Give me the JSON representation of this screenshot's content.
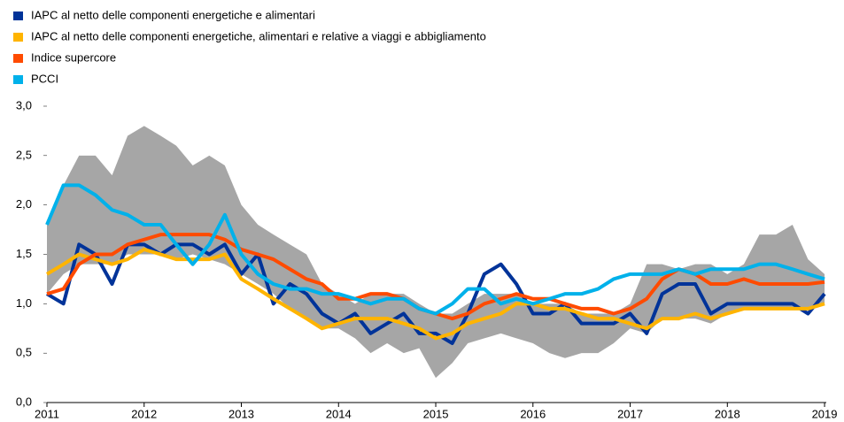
{
  "chart_data": {
    "type": "line",
    "x": [
      2011,
      2011.17,
      2011.33,
      2011.5,
      2011.67,
      2011.83,
      2012,
      2012.17,
      2012.33,
      2012.5,
      2012.67,
      2012.83,
      2013,
      2013.17,
      2013.33,
      2013.5,
      2013.67,
      2013.83,
      2014,
      2014.17,
      2014.33,
      2014.5,
      2014.67,
      2014.83,
      2015,
      2015.17,
      2015.33,
      2015.5,
      2015.67,
      2015.83,
      2016,
      2016.17,
      2016.33,
      2016.5,
      2016.67,
      2016.83,
      2017,
      2017.17,
      2017.33,
      2017.5,
      2017.67,
      2017.83,
      2018,
      2018.17,
      2018.33,
      2018.5,
      2018.67,
      2018.83,
      2019
    ],
    "band": {
      "color": "#a6a6a6",
      "upper": [
        1.8,
        2.2,
        2.5,
        2.5,
        2.3,
        2.7,
        2.8,
        2.7,
        2.6,
        2.4,
        2.5,
        2.4,
        2.0,
        1.8,
        1.7,
        1.6,
        1.5,
        1.2,
        1.1,
        1.0,
        1.1,
        1.1,
        1.1,
        1.0,
        0.9,
        0.9,
        1.0,
        1.1,
        1.1,
        1.1,
        1.0,
        1.0,
        1.0,
        0.9,
        0.9,
        0.9,
        1.0,
        1.4,
        1.4,
        1.35,
        1.4,
        1.4,
        1.3,
        1.4,
        1.7,
        1.7,
        1.8,
        1.45,
        1.3
      ],
      "lower": [
        1.1,
        1.3,
        1.4,
        1.4,
        1.4,
        1.5,
        1.5,
        1.5,
        1.45,
        1.5,
        1.45,
        1.4,
        1.3,
        1.2,
        1.1,
        0.95,
        0.85,
        0.75,
        0.75,
        0.65,
        0.5,
        0.6,
        0.5,
        0.55,
        0.25,
        0.4,
        0.6,
        0.65,
        0.7,
        0.65,
        0.6,
        0.5,
        0.45,
        0.5,
        0.5,
        0.6,
        0.75,
        0.7,
        0.85,
        0.85,
        0.85,
        0.8,
        0.9,
        0.95,
        0.95,
        0.95,
        0.95,
        0.95,
        1.0
      ]
    },
    "series": [
      {
        "name": "IAPC al netto delle componenti energetiche e alimentari",
        "color": "#003399",
        "values": [
          1.1,
          1.0,
          1.6,
          1.5,
          1.2,
          1.6,
          1.6,
          1.5,
          1.6,
          1.6,
          1.5,
          1.6,
          1.3,
          1.5,
          1.0,
          1.2,
          1.1,
          0.9,
          0.8,
          0.9,
          0.7,
          0.8,
          0.9,
          0.7,
          0.7,
          0.6,
          0.9,
          1.3,
          1.4,
          1.2,
          0.9,
          0.9,
          1.0,
          0.8,
          0.8,
          0.8,
          0.9,
          0.7,
          1.1,
          1.2,
          1.2,
          0.9,
          1.0,
          1.0,
          1.0,
          1.0,
          1.0,
          0.9,
          1.1
        ]
      },
      {
        "name": "IAPC al netto delle componenti energetiche, alimentari e relative a viaggi e abbigliamento",
        "color": "#ffb400",
        "values": [
          1.3,
          1.4,
          1.5,
          1.45,
          1.4,
          1.45,
          1.55,
          1.5,
          1.45,
          1.45,
          1.45,
          1.5,
          1.25,
          1.15,
          1.05,
          0.95,
          0.85,
          0.75,
          0.8,
          0.85,
          0.85,
          0.85,
          0.8,
          0.75,
          0.65,
          0.7,
          0.8,
          0.85,
          0.9,
          1.0,
          1.0,
          0.95,
          0.95,
          0.9,
          0.85,
          0.85,
          0.8,
          0.75,
          0.85,
          0.85,
          0.9,
          0.85,
          0.9,
          0.95,
          0.95,
          0.95,
          0.95,
          0.95,
          1.0
        ]
      },
      {
        "name": "Indice supercore",
        "color": "#ff4b00",
        "values": [
          1.1,
          1.15,
          1.4,
          1.5,
          1.5,
          1.6,
          1.65,
          1.7,
          1.7,
          1.7,
          1.7,
          1.65,
          1.55,
          1.5,
          1.45,
          1.35,
          1.25,
          1.2,
          1.05,
          1.05,
          1.1,
          1.1,
          1.05,
          0.95,
          0.9,
          0.85,
          0.9,
          1.0,
          1.05,
          1.1,
          1.05,
          1.05,
          1.0,
          0.95,
          0.95,
          0.9,
          0.95,
          1.05,
          1.25,
          1.35,
          1.3,
          1.2,
          1.2,
          1.25,
          1.2,
          1.2,
          1.2,
          1.2,
          1.22
        ]
      },
      {
        "name": "PCCI",
        "color": "#00b1ea",
        "values": [
          1.8,
          2.2,
          2.2,
          2.1,
          1.95,
          1.9,
          1.8,
          1.8,
          1.6,
          1.4,
          1.6,
          1.9,
          1.5,
          1.3,
          1.2,
          1.15,
          1.15,
          1.1,
          1.1,
          1.05,
          1.0,
          1.05,
          1.05,
          0.95,
          0.9,
          1.0,
          1.15,
          1.15,
          1.0,
          1.05,
          1.0,
          1.05,
          1.1,
          1.1,
          1.15,
          1.25,
          1.3,
          1.3,
          1.3,
          1.35,
          1.3,
          1.35,
          1.35,
          1.35,
          1.4,
          1.4,
          1.35,
          1.3,
          1.25
        ]
      }
    ],
    "xlim": [
      2011,
      2019.2
    ],
    "xticks": [
      2011,
      2012,
      2013,
      2014,
      2015,
      2016,
      2017,
      2018,
      2019
    ],
    "ylim": [
      0,
      3
    ],
    "yticks": [
      {
        "value": 0,
        "label": "0,0"
      },
      {
        "value": 0.5,
        "label": "0,5"
      },
      {
        "value": 1,
        "label": "1,0"
      },
      {
        "value": 1.5,
        "label": "1,5"
      },
      {
        "value": 2,
        "label": "2,0"
      },
      {
        "value": 2.5,
        "label": "2,5"
      },
      {
        "value": 3,
        "label": "3,0"
      }
    ],
    "legend": "top-left"
  }
}
